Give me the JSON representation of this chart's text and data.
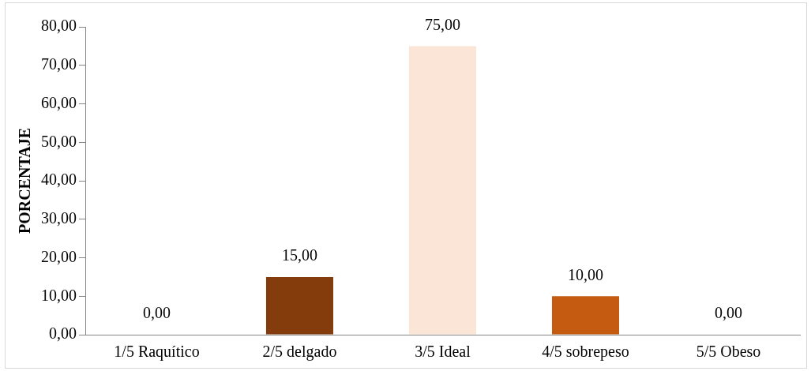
{
  "chart_data": {
    "type": "bar",
    "ylabel": "PORCENTAJE",
    "categories": [
      "1/5 Raquítico",
      "2/5 delgado",
      "3/5 Ideal",
      "4/5 sobrepeso",
      "5/5 Obeso"
    ],
    "values": [
      0,
      15,
      75,
      10,
      0
    ],
    "colors": [
      "#4472c4",
      "#843c0c",
      "#fbe5d6",
      "#c55a11",
      "#f4b183"
    ],
    "value_labels": [
      "0,00",
      "15,00",
      "75,00",
      "10,00",
      "0,00"
    ],
    "ylim": [
      0,
      80
    ],
    "yticks": [
      {
        "value": 0,
        "label": "0,00"
      },
      {
        "value": 10,
        "label": "10,00"
      },
      {
        "value": 20,
        "label": "20,00"
      },
      {
        "value": 30,
        "label": "30,00"
      },
      {
        "value": 40,
        "label": "40,00"
      },
      {
        "value": 50,
        "label": "50,00"
      },
      {
        "value": 60,
        "label": "60,00"
      },
      {
        "value": 70,
        "label": "70,00"
      },
      {
        "value": 80,
        "label": "80,00"
      }
    ],
    "grid": false,
    "legend": false
  }
}
